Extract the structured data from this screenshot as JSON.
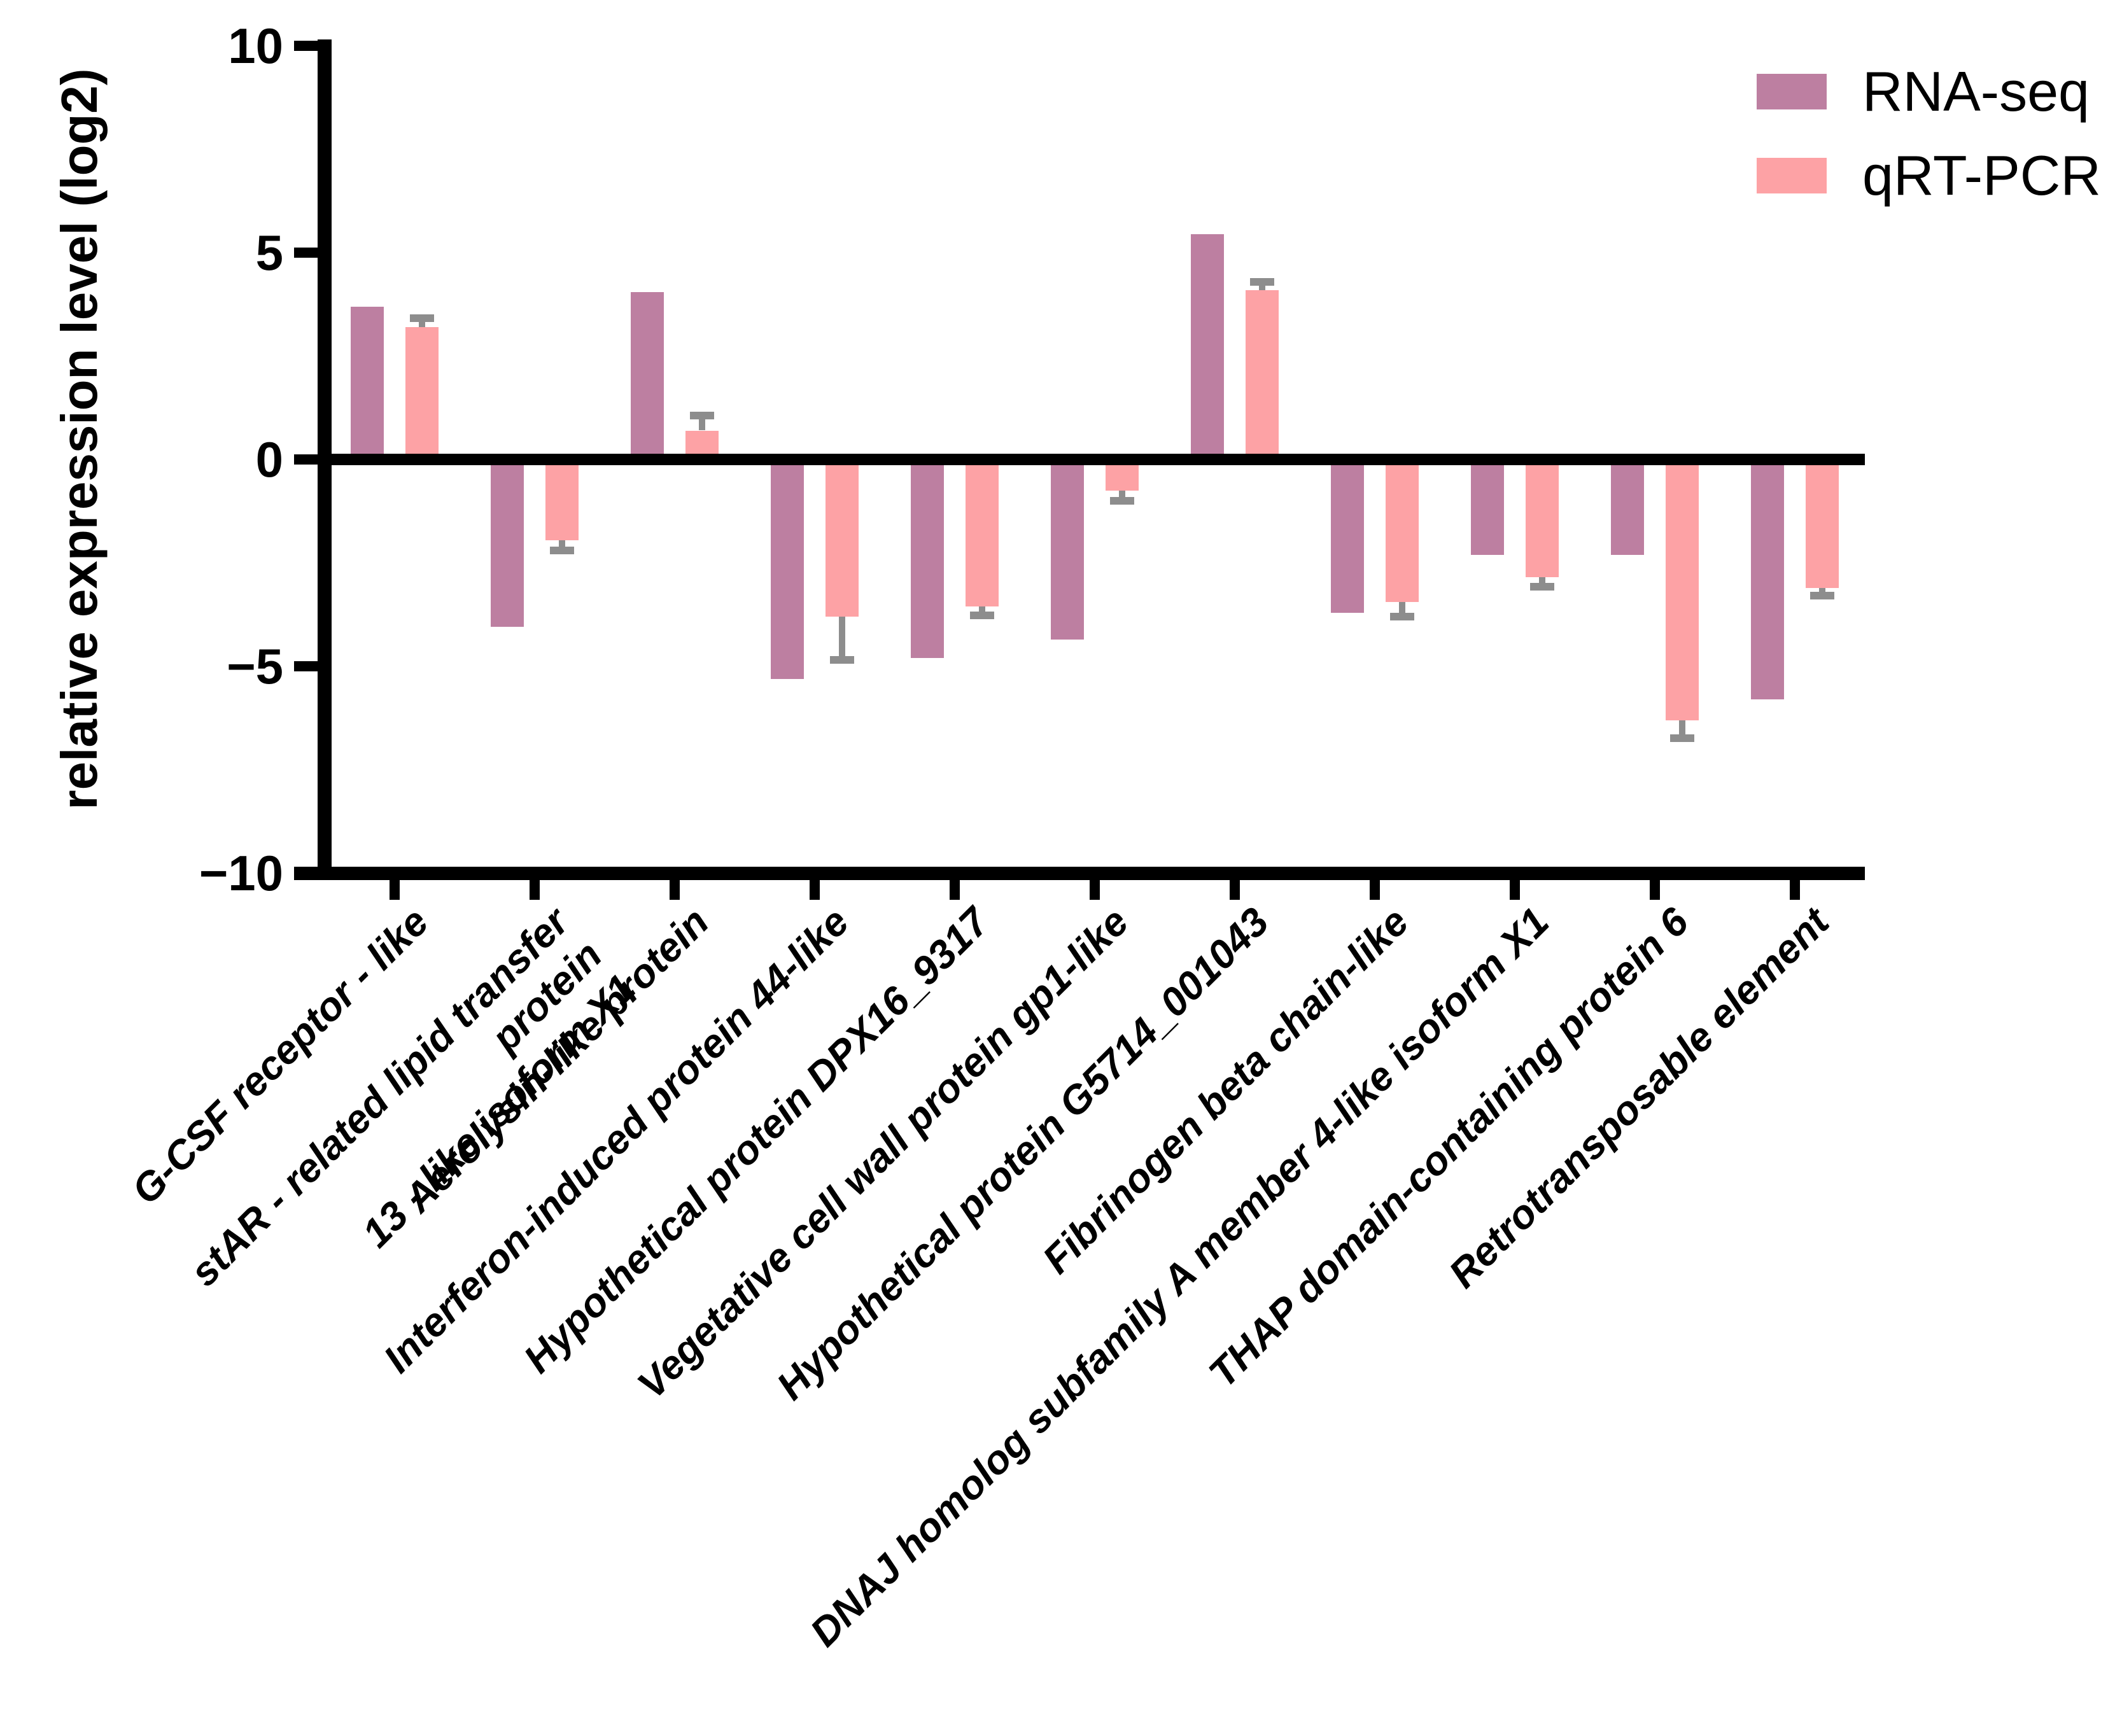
{
  "chart_data": {
    "type": "bar",
    "title": "",
    "xlabel": "",
    "ylabel": "relative expression level (log2)",
    "ylim": [
      -10,
      10
    ],
    "yticks": [
      10,
      5,
      0,
      -5,
      -10
    ],
    "ytick_labels": [
      "10",
      "5",
      "0",
      "−5",
      "−10"
    ],
    "grid": false,
    "legend_position": "top-right",
    "axis_color": "#000000",
    "error_bar_color": "#8d8d8d",
    "categories": [
      "G-CSF receptor - like",
      "stAR - related lipid transfer protein\n13 - like isoform X1",
      "Aerolysin-like protein",
      "Interferon-induced protein 44-like",
      "Hypothetical protein DPX16_9317",
      "Vegetative cell wall protein gp1-like",
      "Hypothetical protein G5714_001043",
      "Fibrinogen beta chain-like",
      "DNAJ homolog subfamily A member 4-like isoform X1",
      "THAP domain-containing protein 6",
      "Retrotransposable element"
    ],
    "series": [
      {
        "name": "RNA-seq",
        "color": "#bd7fa1",
        "values": [
          3.7,
          -4.05,
          4.05,
          -5.3,
          -4.8,
          -4.35,
          5.45,
          -3.7,
          -2.3,
          -2.3,
          -5.8
        ]
      },
      {
        "name": "qRT-PCR",
        "color": "#fda2a5",
        "values": [
          3.2,
          -1.95,
          0.7,
          -3.8,
          -3.55,
          -0.75,
          4.1,
          -3.45,
          -2.85,
          -6.3,
          -3.1
        ],
        "errors": [
          0.12,
          0.15,
          0.27,
          0.95,
          0.13,
          0.15,
          0.1,
          0.25,
          0.13,
          0.35,
          0.1
        ],
        "error_direction": "away-from-zero"
      }
    ]
  }
}
